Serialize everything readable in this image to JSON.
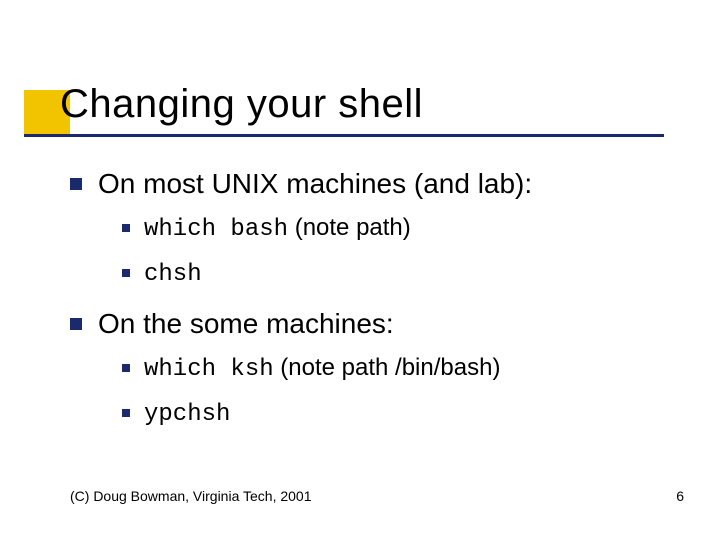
{
  "title": "Changing your shell",
  "colors": {
    "accent_square": "#f2c400",
    "underline": "#1a2a6c",
    "bullet": "#1a2a6c",
    "text": "#000000",
    "background": "#ffffff"
  },
  "typography": {
    "title_fontsize": 40,
    "l1_fontsize": 28,
    "l2_fontsize": 24,
    "footer_fontsize": 14,
    "mono_family": "Courier New"
  },
  "bullets": [
    {
      "text": "On most UNIX machines (and lab):",
      "children": [
        {
          "code": "which bash",
          "suffix": " (note path)"
        },
        {
          "code": "chsh",
          "suffix": ""
        }
      ]
    },
    {
      "text": "On the some machines:",
      "children": [
        {
          "code": "which ksh",
          "suffix": " (note path /bin/bash)"
        },
        {
          "code": "ypchsh",
          "suffix": ""
        }
      ]
    }
  ],
  "footer": {
    "copyright": "(C) Doug Bowman, Virginia Tech, 2001",
    "page_number": "6"
  }
}
